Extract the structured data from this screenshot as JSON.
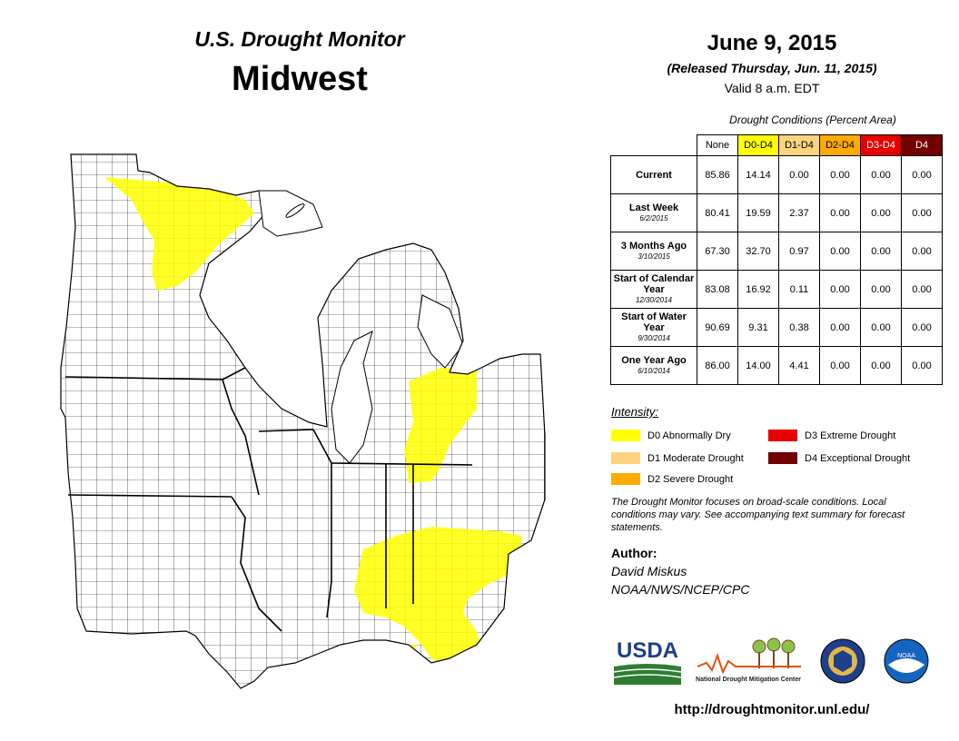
{
  "header": {
    "title": "U.S. Drought Monitor",
    "region": "Midwest",
    "date": "June 9, 2015",
    "released": "(Released Thursday, Jun. 11, 2015)",
    "valid": "Valid  8 a.m. EDT"
  },
  "conditions": {
    "title": "Drought Conditions (Percent Area)",
    "columns": [
      "None",
      "D0-D4",
      "D1-D4",
      "D2-D4",
      "D3-D4",
      "D4"
    ],
    "rows": [
      {
        "label": "Current",
        "sub": "",
        "values": [
          "85.86",
          "14.14",
          "0.00",
          "0.00",
          "0.00",
          "0.00"
        ]
      },
      {
        "label": "Last Week",
        "sub": "6/2/2015",
        "values": [
          "80.41",
          "19.59",
          "2.37",
          "0.00",
          "0.00",
          "0.00"
        ]
      },
      {
        "label": "3 Months Ago",
        "sub": "3/10/2015",
        "values": [
          "67.30",
          "32.70",
          "0.97",
          "0.00",
          "0.00",
          "0.00"
        ]
      },
      {
        "label": "Start of Calendar Year",
        "sub": "12/30/2014",
        "values": [
          "83.08",
          "16.92",
          "0.11",
          "0.00",
          "0.00",
          "0.00"
        ]
      },
      {
        "label": "Start of Water Year",
        "sub": "9/30/2014",
        "values": [
          "90.69",
          "9.31",
          "0.38",
          "0.00",
          "0.00",
          "0.00"
        ]
      },
      {
        "label": "One Year Ago",
        "sub": "6/10/2014",
        "values": [
          "86.00",
          "14.00",
          "4.41",
          "0.00",
          "0.00",
          "0.00"
        ]
      }
    ]
  },
  "legend": {
    "title": "Intensity:",
    "items": [
      {
        "label": "D0 Abnormally Dry",
        "color": "#ffff00"
      },
      {
        "label": "D1 Moderate Drought",
        "color": "#fcd37f"
      },
      {
        "label": "D2 Severe Drought",
        "color": "#ffaa00"
      },
      {
        "label": "D3 Extreme Drought",
        "color": "#e60000"
      },
      {
        "label": "D4 Exceptional Drought",
        "color": "#730000"
      }
    ]
  },
  "note": "The Drought Monitor focuses on broad-scale conditions. Local conditions may vary. See accompanying text summary for forecast statements.",
  "author": {
    "heading": "Author:",
    "name": "David Miskus",
    "org": "NOAA/NWS/NCEP/CPC"
  },
  "logos": {
    "usda": "USDA",
    "ndmc": "National Drought Mitigation Center",
    "noaa": "NOAA"
  },
  "url": "http://droughtmonitor.unl.edu/"
}
